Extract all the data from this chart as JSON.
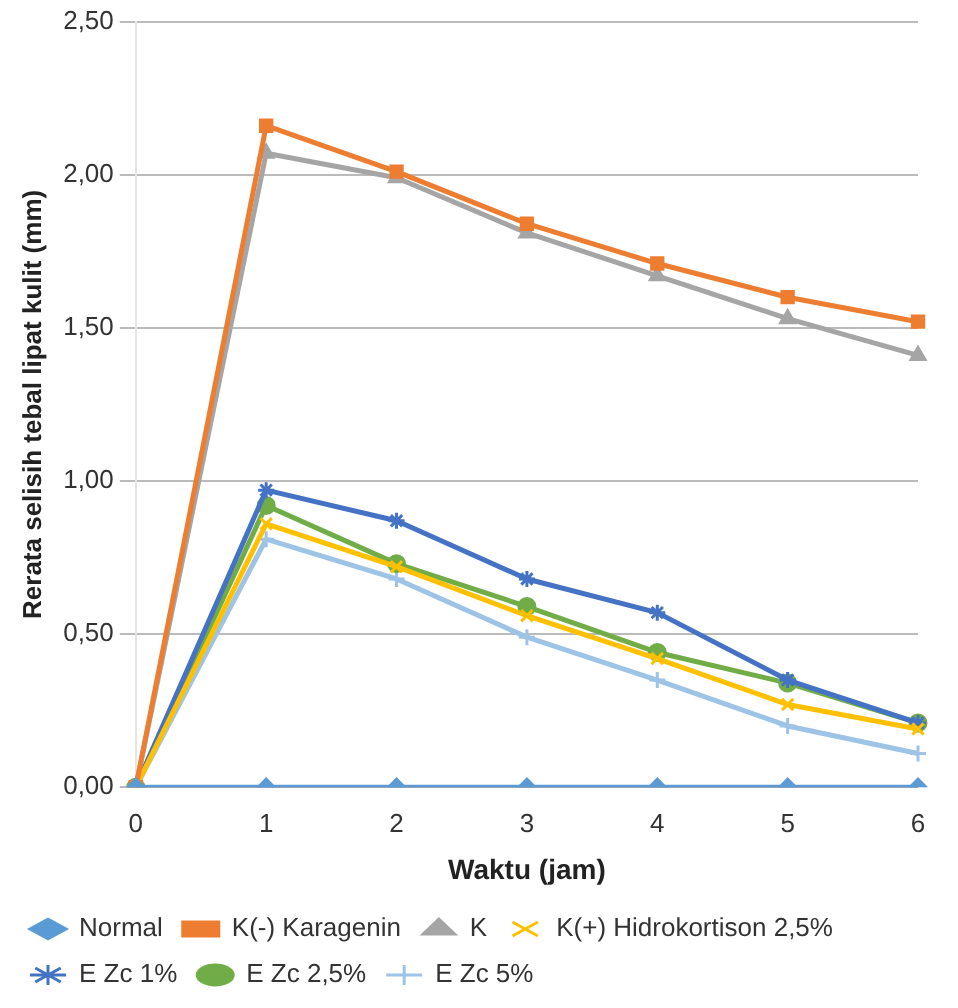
{
  "chart_data": {
    "type": "line",
    "xlabel": "Waktu (jam)",
    "ylabel": "Rerata selisih tebal lipat kulit (mm)",
    "categories": [
      "0",
      "1",
      "2",
      "3",
      "4",
      "5",
      "6"
    ],
    "ylim": [
      0,
      2.5
    ],
    "yticks": [
      {
        "value": 0,
        "label": "0,00"
      },
      {
        "value": 0.5,
        "label": "0,50"
      },
      {
        "value": 1,
        "label": "1,00"
      },
      {
        "value": 1.5,
        "label": "1,50"
      },
      {
        "value": 2,
        "label": "2,00"
      },
      {
        "value": 2.5,
        "label": "2,50"
      }
    ],
    "grid": "y",
    "legend": "bottom",
    "series": [
      {
        "name": "Normal",
        "color": "#5b9bd5",
        "marker": "diamond",
        "values": [
          0,
          0,
          0,
          0,
          0,
          0,
          0
        ]
      },
      {
        "name": "K(-) Karagenin",
        "color": "#ed7d31",
        "marker": "square",
        "values": [
          0,
          2.16,
          2.01,
          1.84,
          1.71,
          1.6,
          1.52
        ]
      },
      {
        "name": "K",
        "color": "#a5a5a5",
        "marker": "triangle",
        "values": [
          0,
          2.07,
          1.99,
          1.81,
          1.67,
          1.53,
          1.41
        ]
      },
      {
        "name": "K(+) Hidrokortison 2,5%",
        "color": "#ffc000",
        "marker": "cross",
        "values": [
          0,
          0.86,
          0.72,
          0.56,
          0.42,
          0.27,
          0.19
        ]
      },
      {
        "name": "E Zc 1%",
        "color": "#4472c4",
        "marker": "cross",
        "values": [
          0,
          0.97,
          0.87,
          0.68,
          0.57,
          0.35,
          0.21
        ]
      },
      {
        "name": "E Zc 2,5%",
        "color": "#70ad47",
        "marker": "circle",
        "values": [
          0,
          0.92,
          0.73,
          0.59,
          0.44,
          0.34,
          0.21
        ]
      },
      {
        "name": "E Zc 5%",
        "color": "#9dc3e6",
        "marker": "cross",
        "values": [
          0,
          0.81,
          0.68,
          0.49,
          0.35,
          0.2,
          0.11
        ]
      }
    ]
  }
}
